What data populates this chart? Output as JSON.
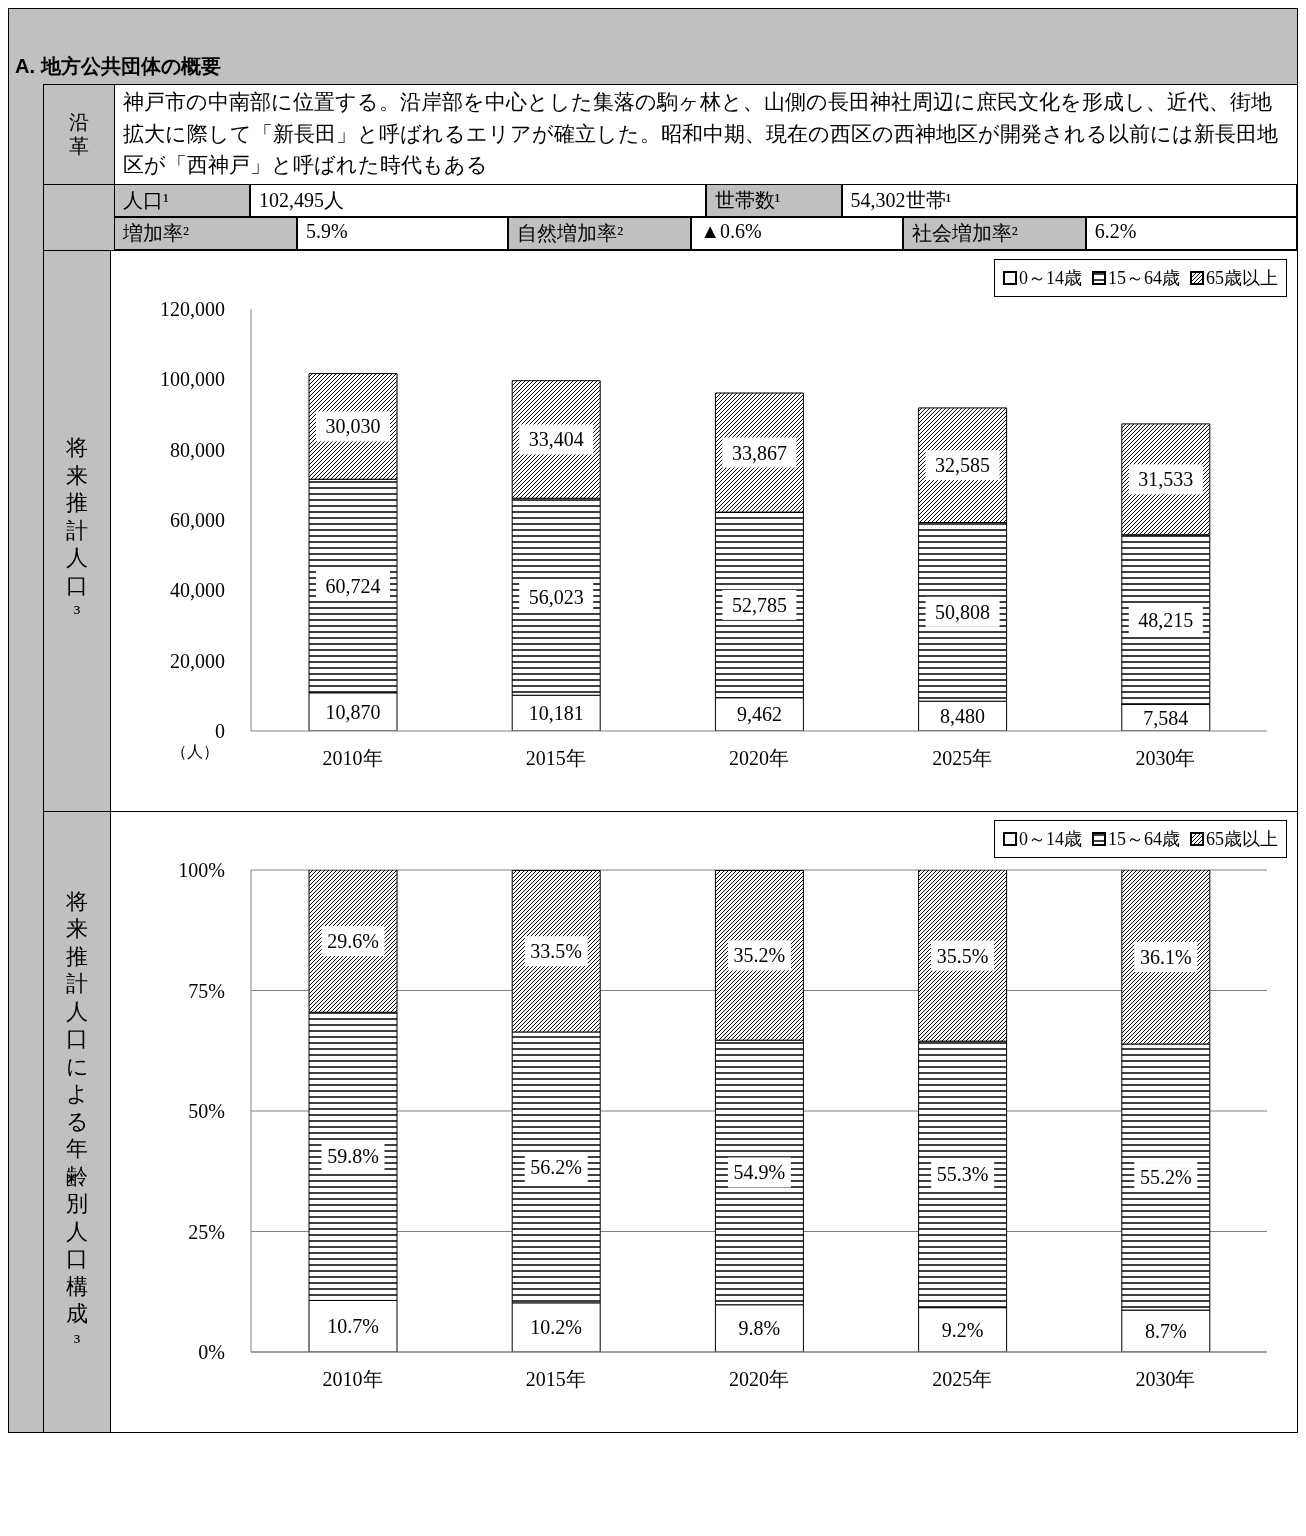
{
  "chart_data": [
    {
      "type": "other",
      "title": "A. 地方公共団体の概要",
      "annotations": [
        "沿革",
        "神戸市の中南部に位置する。沿岸部を中心とした集落の駒ヶ林と、山側の長田神社周辺に庶民文化を形成し、近代、街地拡大に際して「新長田」と呼ばれるエリアが確立した。昭和中期、現在の西区の西神地区が開発される以前には新長田地区が「西神戸」と呼ばれた時代もある",
        "人口¹",
        "102,495人",
        "世帯数¹",
        "54,302世帯¹",
        "増加率²",
        "5.9%",
        "自然増加率²",
        "▲0.6%",
        "社会増加率²",
        "6.2%"
      ]
    },
    {
      "type": "bar",
      "stacked": true,
      "ylabel": "将来推計人口³",
      "categories": [
        "2010年",
        "2015年",
        "2020年",
        "2025年",
        "2030年"
      ],
      "ylim": [
        0,
        120000
      ],
      "yticks": [
        0,
        {
          "value": 20000,
          "label": "20,000"
        },
        {
          "value": 40000,
          "label": "40,000"
        },
        {
          "value": 60000,
          "label": "60,000"
        },
        {
          "value": 80000,
          "label": "80,000"
        },
        {
          "value": 100000,
          "label": "100,000"
        },
        {
          "value": 120000,
          "label": "120,000"
        }
      ],
      "grid": false,
      "legend": "top right",
      "annotations": [
        "（人）"
      ],
      "series": [
        {
          "name": "0～14歳",
          "color": "#ffffff",
          "values": [
            10870,
            10181,
            9462,
            8480,
            7584
          ],
          "value_labels": [
            "10,870",
            "10,181",
            "9,462",
            "8,480",
            "7,584"
          ]
        },
        {
          "name": "15～64歳",
          "color": "#000000",
          "values": [
            60724,
            56023,
            52785,
            50808,
            48215
          ],
          "value_labels": [
            "60,724",
            "56,023",
            "52,785",
            "50,808",
            "48,215"
          ]
        },
        {
          "name": "65歳以上",
          "color": "#000000",
          "values": [
            30030,
            33404,
            33867,
            32585,
            31533
          ],
          "value_labels": [
            "30,030",
            "33,404",
            "33,867",
            "32,585",
            "31,533"
          ]
        }
      ]
    },
    {
      "type": "bar",
      "stacked": true,
      "ylabel": "将来推計人口による年齢別人口構成³",
      "categories": [
        "2010年",
        "2015年",
        "2020年",
        "2025年",
        "2030年"
      ],
      "ylim": [
        0,
        100
      ],
      "yticks": [
        {
          "value": 0,
          "label": "0%"
        },
        {
          "value": 25,
          "label": "25%"
        },
        {
          "value": 50,
          "label": "50%"
        },
        {
          "value": 75,
          "label": "75%"
        },
        {
          "value": 100,
          "label": "100%"
        }
      ],
      "grid": "y",
      "legend": "top right",
      "series": [
        {
          "name": "0～14歳",
          "color": "#ffffff",
          "values": [
            10.7,
            10.2,
            9.8,
            9.2,
            8.7
          ],
          "value_labels": [
            "10.7%",
            "10.2%",
            "9.8%",
            "9.2%",
            "8.7%"
          ]
        },
        {
          "name": "15～64歳",
          "color": "#000000",
          "values": [
            59.8,
            56.2,
            54.9,
            55.3,
            55.2
          ],
          "value_labels": [
            "59.8%",
            "56.2%",
            "54.9%",
            "55.3%",
            "55.2%"
          ]
        },
        {
          "name": "65歳以上",
          "color": "#000000",
          "values": [
            29.6,
            33.5,
            35.2,
            35.5,
            36.1
          ],
          "value_labels": [
            "29.6%",
            "33.5%",
            "35.2%",
            "35.5%",
            "36.1%"
          ]
        }
      ]
    }
  ]
}
